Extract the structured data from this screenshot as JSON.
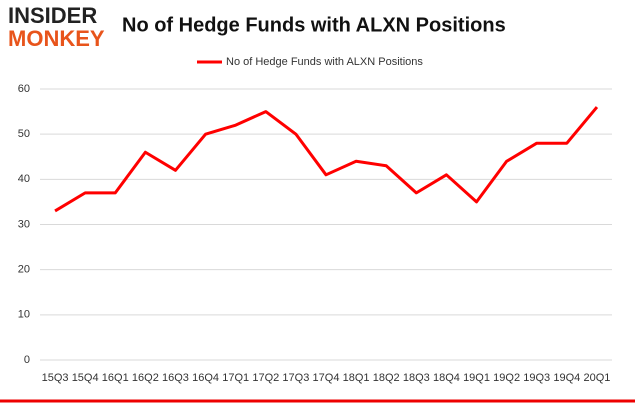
{
  "logo": {
    "line1": "INSIDER",
    "line2": "MONKEY"
  },
  "chart_data": {
    "type": "line",
    "title": "No of Hedge Funds with ALXN Positions",
    "categories": [
      "15Q3",
      "15Q4",
      "16Q1",
      "16Q2",
      "16Q3",
      "16Q4",
      "17Q1",
      "17Q2",
      "17Q3",
      "17Q4",
      "18Q1",
      "18Q2",
      "18Q3",
      "18Q4",
      "19Q1",
      "19Q2",
      "19Q3",
      "19Q4",
      "20Q1"
    ],
    "series": [
      {
        "name": "No of Hedge Funds with ALXN Positions",
        "color": "#ff0000",
        "values": [
          33,
          37,
          37,
          46,
          42,
          50,
          52,
          55,
          50,
          41,
          44,
          43,
          37,
          41,
          35,
          44,
          48,
          48,
          56
        ]
      }
    ],
    "ylim": [
      0,
      60
    ],
    "yticks": [
      0,
      10,
      20,
      30,
      40,
      50,
      60
    ],
    "grid": true,
    "legend": "top"
  }
}
